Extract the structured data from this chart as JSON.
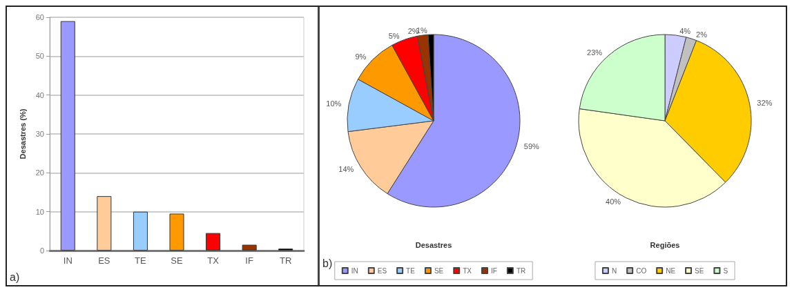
{
  "chart_data": [
    {
      "type": "bar",
      "ylabel": "Desastres (%)",
      "categories": [
        "IN",
        "ES",
        "TE",
        "SE",
        "TX",
        "IF",
        "TR"
      ],
      "values": [
        59,
        14,
        10,
        9.5,
        4.5,
        1.5,
        0.5
      ],
      "colors": [
        "#9999ff",
        "#ffcc99",
        "#99ccff",
        "#ff9900",
        "#ff0000",
        "#993300",
        "#000000"
      ],
      "ylim": [
        0,
        60
      ],
      "yticks": [
        0,
        10,
        20,
        30,
        40,
        50,
        60
      ],
      "grid": "y",
      "legend": false,
      "annotations": [
        "a)"
      ]
    },
    {
      "type": "pie",
      "title": "Desastres",
      "categories": [
        "IN",
        "ES",
        "TE",
        "SE",
        "TX",
        "IF",
        "TR"
      ],
      "values": [
        59,
        14,
        10,
        9,
        5,
        2,
        1
      ],
      "colors": [
        "#9999ff",
        "#ffcc99",
        "#99ccff",
        "#ff9900",
        "#ff0000",
        "#993300",
        "#000000"
      ],
      "value_labels": [
        "59%",
        "14%",
        "10%",
        "9%",
        "5%",
        "2%",
        "1%"
      ],
      "legend": "bottom",
      "annotations": [
        "b)"
      ]
    },
    {
      "type": "pie",
      "title": "Regiões",
      "categories": [
        "N",
        "CO",
        "NE",
        "SE",
        "S"
      ],
      "values": [
        4,
        2,
        32,
        40,
        23
      ],
      "colors": [
        "#ccccff",
        "#c0c0c0",
        "#ffcc00",
        "#ffffcc",
        "#ccffcc"
      ],
      "value_labels": [
        "4%",
        "2%",
        "32%",
        "40%",
        "23%"
      ],
      "legend": "bottom"
    }
  ]
}
